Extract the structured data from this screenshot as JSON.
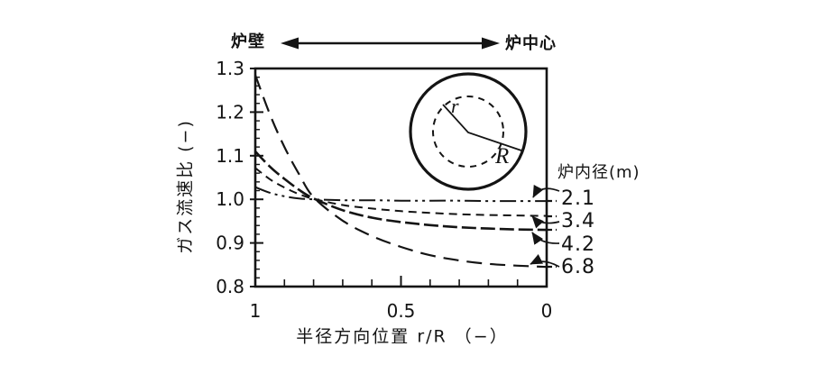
{
  "figure": {
    "ink": "#141414",
    "background": "#ffffff"
  },
  "chart_data": {
    "type": "line",
    "title": "",
    "xlabel": "半径方向位置 r/R （−）",
    "ylabel": "ガス流速比 (−)",
    "xlim": [
      1,
      0
    ],
    "ylim": [
      0.8,
      1.3
    ],
    "x_axis_reversed": true,
    "grid": false,
    "x_ticks": [
      {
        "label": "1",
        "value": 1
      },
      {
        "label": "0.5",
        "value": 0.5
      },
      {
        "label": "0",
        "value": 0
      }
    ],
    "y_ticks": [
      {
        "label": "1.3",
        "value": 1.3
      },
      {
        "label": "1.2",
        "value": 1.2
      },
      {
        "label": "1.1",
        "value": 1.1
      },
      {
        "label": "1.0",
        "value": 1.0
      },
      {
        "label": "0.9",
        "value": 0.9
      },
      {
        "label": "0.8",
        "value": 0.8
      }
    ],
    "x_minor_step": 0.1,
    "y_minor_step": 0.02,
    "legend_title": "炉内径(m)",
    "legend_position": "right-outside",
    "annotations": {
      "top_left": "炉壁",
      "top_right": "炉中心",
      "inset_small_radius": "r",
      "inset_large_radius": "R"
    },
    "series": [
      {
        "name": "2.1",
        "line_style": "long-dash-dot-dot",
        "dash": [
          18,
          5,
          3,
          5,
          3,
          5
        ],
        "stroke_width": 2.0,
        "x": [
          1,
          0.95,
          0.9,
          0.85,
          0.8,
          0.7,
          0.6,
          0.5,
          0.4,
          0.3,
          0.2,
          0.1,
          0
        ],
        "y": [
          1.028,
          1.015,
          1.007,
          1.002,
          1.0,
          0.998,
          0.998,
          0.997,
          0.997,
          0.997,
          0.996,
          0.996,
          0.996
        ]
      },
      {
        "name": "3.4",
        "line_style": "medium-dash",
        "dash": [
          9,
          6
        ],
        "stroke_width": 2.0,
        "x": [
          1,
          0.95,
          0.9,
          0.85,
          0.8,
          0.7,
          0.6,
          0.5,
          0.4,
          0.3,
          0.2,
          0.1,
          0
        ],
        "y": [
          1.072,
          1.046,
          1.027,
          1.012,
          1.001,
          0.987,
          0.979,
          0.973,
          0.969,
          0.966,
          0.964,
          0.963,
          0.962
        ]
      },
      {
        "name": "4.2",
        "line_style": "long-dash-bold",
        "dash": [
          16,
          5
        ],
        "stroke_width": 2.6,
        "x": [
          1,
          0.95,
          0.9,
          0.85,
          0.8,
          0.7,
          0.6,
          0.5,
          0.4,
          0.3,
          0.2,
          0.1,
          0
        ],
        "y": [
          1.11,
          1.075,
          1.047,
          1.022,
          1.002,
          0.975,
          0.958,
          0.948,
          0.941,
          0.936,
          0.933,
          0.931,
          0.93
        ]
      },
      {
        "name": "6.8",
        "line_style": "long-dash",
        "dash": [
          17,
          9
        ],
        "stroke_width": 2.2,
        "x": [
          1,
          0.95,
          0.9,
          0.85,
          0.8,
          0.7,
          0.6,
          0.5,
          0.4,
          0.3,
          0.2,
          0.1,
          0
        ],
        "y": [
          1.285,
          1.195,
          1.12,
          1.058,
          1.005,
          0.951,
          0.916,
          0.891,
          0.872,
          0.86,
          0.852,
          0.848,
          0.845
        ]
      }
    ]
  }
}
